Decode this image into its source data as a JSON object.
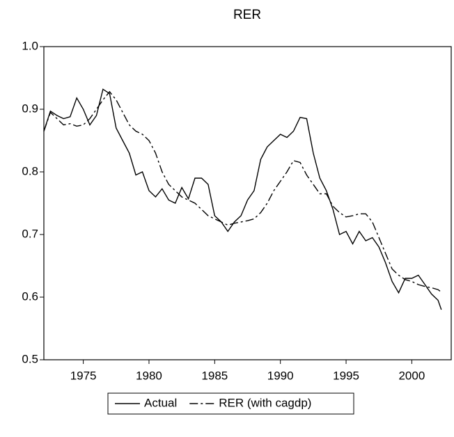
{
  "chart_data": {
    "type": "line",
    "title": "RER",
    "x": [
      1972.0,
      1972.5,
      1973.0,
      1973.5,
      1974.0,
      1974.5,
      1975.0,
      1975.5,
      1976.0,
      1976.5,
      1977.0,
      1977.5,
      1978.0,
      1978.5,
      1979.0,
      1979.5,
      1980.0,
      1980.5,
      1981.0,
      1981.5,
      1982.0,
      1982.5,
      1983.0,
      1983.5,
      1984.0,
      1984.5,
      1985.0,
      1985.5,
      1986.0,
      1986.5,
      1987.0,
      1987.5,
      1988.0,
      1988.5,
      1989.0,
      1989.5,
      1990.0,
      1990.5,
      1991.0,
      1991.5,
      1992.0,
      1992.5,
      1993.0,
      1993.5,
      1994.0,
      1994.5,
      1995.0,
      1995.5,
      1996.0,
      1996.5,
      1997.0,
      1997.5,
      1998.0,
      1998.5,
      1999.0,
      1999.5,
      2000.0,
      2000.5,
      2001.0,
      2001.5,
      2002.0,
      2002.25
    ],
    "series": [
      {
        "name": "Actual",
        "color": "#000000",
        "dash": "solid",
        "values": [
          0.865,
          0.897,
          0.89,
          0.885,
          0.888,
          0.918,
          0.9,
          0.875,
          0.89,
          0.932,
          0.925,
          0.87,
          0.85,
          0.83,
          0.795,
          0.8,
          0.77,
          0.76,
          0.773,
          0.755,
          0.75,
          0.775,
          0.757,
          0.79,
          0.79,
          0.78,
          0.73,
          0.72,
          0.705,
          0.72,
          0.73,
          0.755,
          0.77,
          0.82,
          0.84,
          0.85,
          0.86,
          0.855,
          0.865,
          0.887,
          0.885,
          0.83,
          0.79,
          0.77,
          0.74,
          0.7,
          0.705,
          0.685,
          0.705,
          0.69,
          0.695,
          0.68,
          0.655,
          0.625,
          0.607,
          0.63,
          0.63,
          0.635,
          0.62,
          0.605,
          0.595,
          0.58
        ]
      },
      {
        "name": "RER (with cagdp)",
        "color": "#000000",
        "dash": "dashdot",
        "values": [
          0.865,
          0.895,
          0.885,
          0.875,
          0.877,
          0.873,
          0.875,
          0.885,
          0.9,
          0.915,
          0.928,
          0.915,
          0.895,
          0.875,
          0.865,
          0.86,
          0.85,
          0.83,
          0.8,
          0.78,
          0.77,
          0.76,
          0.755,
          0.75,
          0.74,
          0.73,
          0.725,
          0.72,
          0.715,
          0.718,
          0.72,
          0.722,
          0.725,
          0.735,
          0.75,
          0.77,
          0.785,
          0.8,
          0.818,
          0.815,
          0.795,
          0.78,
          0.765,
          0.765,
          0.745,
          0.735,
          0.728,
          0.73,
          0.733,
          0.733,
          0.72,
          0.695,
          0.67,
          0.645,
          0.635,
          0.628,
          0.625,
          0.62,
          0.617,
          0.615,
          0.612,
          0.608
        ]
      }
    ],
    "xlim": [
      1972,
      2003
    ],
    "xticks": [
      1975,
      1980,
      1985,
      1990,
      1995,
      2000
    ],
    "ylim": [
      0.5,
      1.0
    ],
    "yticks": [
      {
        "value": 0.5,
        "label": "0.5"
      },
      0.6,
      0.7,
      0.8,
      0.9,
      {
        "value": 1.0,
        "label": "1.0"
      }
    ],
    "legend": "bottom"
  }
}
